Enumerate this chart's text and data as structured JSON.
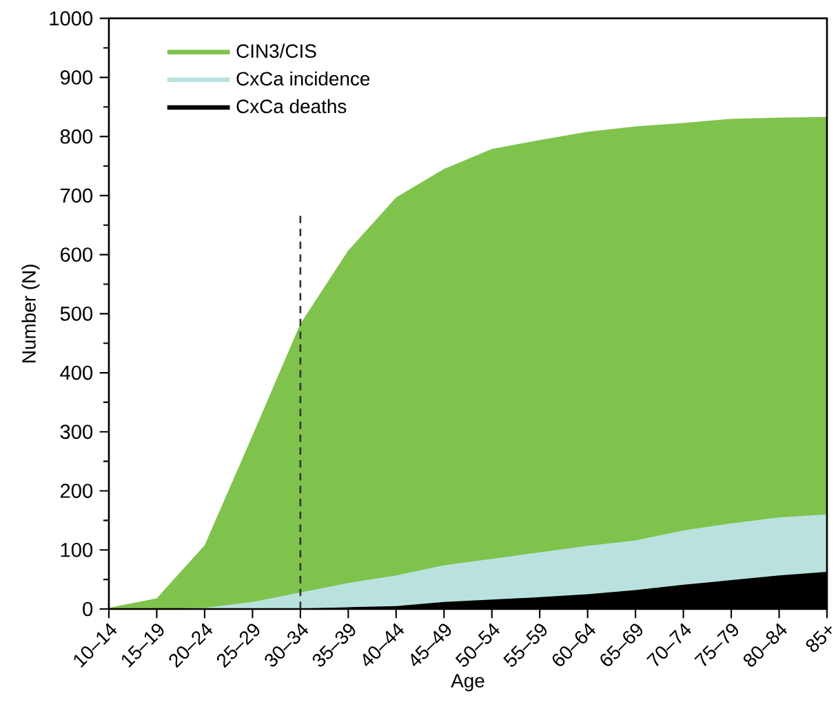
{
  "chart_data": {
    "type": "area",
    "xlabel": "Age",
    "ylabel": "Number (N)",
    "categories": [
      "10–14",
      "15–19",
      "20–24",
      "25–29",
      "30–34",
      "35–39",
      "40–44",
      "45–49",
      "50–54",
      "55–59",
      "60–64",
      "65–69",
      "70–74",
      "75–79",
      "80–84",
      "85+"
    ],
    "series": [
      {
        "name": "CIN3/CIS",
        "color": "#7fc34d",
        "values": [
          2,
          18,
          108,
          294,
          483,
          607,
          697,
          745,
          779,
          794,
          808,
          817,
          823,
          830,
          832,
          833
        ]
      },
      {
        "name": "CxCa incidence",
        "color": "#b9e2df",
        "values": [
          0,
          0,
          2,
          12,
          28,
          44,
          57,
          74,
          85,
          96,
          107,
          116,
          133,
          145,
          155,
          160
        ]
      },
      {
        "name": "CxCa deaths",
        "color": "#000000",
        "values": [
          0,
          0,
          0,
          0,
          1,
          3,
          5,
          12,
          16,
          20,
          25,
          32,
          41,
          49,
          57,
          63
        ]
      },
      {
        "type": "line",
        "color": "#333333",
        "line_style": "dashed",
        "x": [
          "30–34",
          "30–34"
        ],
        "values": [
          0,
          670
        ]
      }
    ],
    "ylim": [
      0,
      1000
    ],
    "yticks": [
      0,
      100,
      200,
      300,
      400,
      500,
      600,
      700,
      800,
      900,
      1000
    ],
    "grid": false,
    "legend": "top left"
  }
}
